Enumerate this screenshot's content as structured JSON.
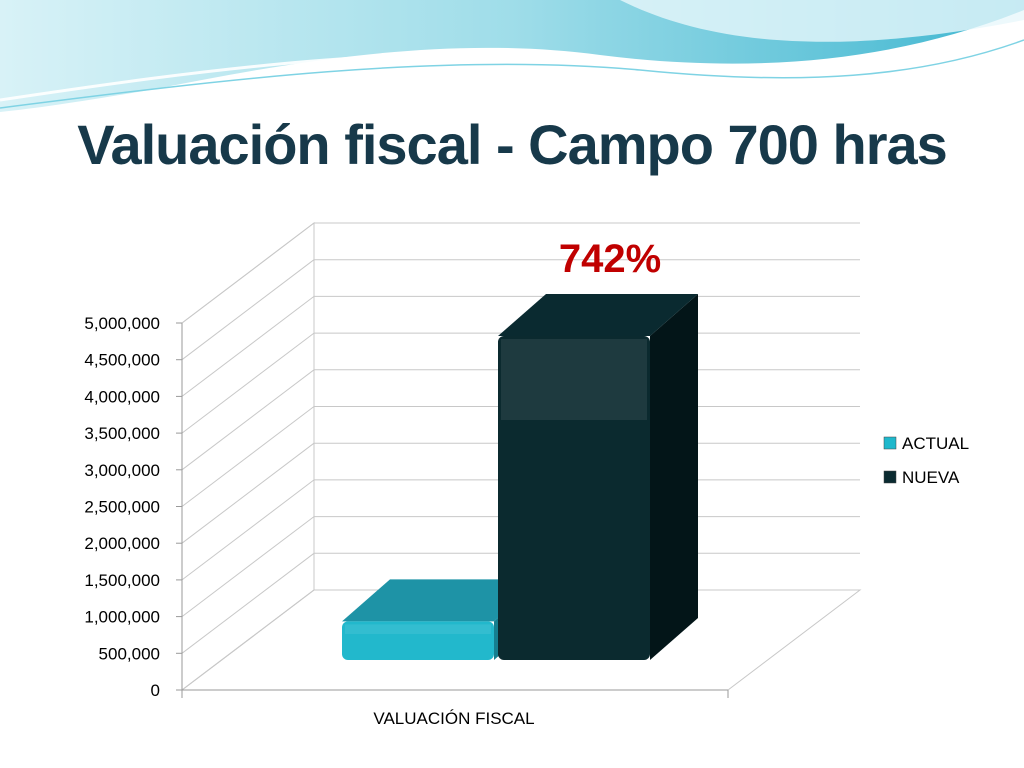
{
  "slide": {
    "title": "Valuación fiscal - Campo 700 hras",
    "annotation": "742%",
    "annotation_color": "#c00000"
  },
  "colors": {
    "wave_light": "#bfe9f2",
    "wave_mid": "#5cc8dc",
    "title": "#17394a"
  },
  "chart_data": {
    "type": "bar",
    "style": "3d-column",
    "categories": [
      "VALUACIÓN FISCAL"
    ],
    "series": [
      {
        "name": "ACTUAL",
        "values": [
          560000
        ],
        "color": "#1fb8cc"
      },
      {
        "name": "NUEVA",
        "values": [
          4700000
        ],
        "color": "#0a2a30"
      }
    ],
    "ylim": [
      0,
      5000000
    ],
    "yticks": [
      "0",
      "500,000",
      "1,000,000",
      "1,500,000",
      "2,000,000",
      "2,500,000",
      "3,000,000",
      "3,500,000",
      "4,000,000",
      "4,500,000",
      "5,000,000"
    ],
    "grid": true,
    "legend_position": "right",
    "annotations": [
      "742%"
    ]
  }
}
